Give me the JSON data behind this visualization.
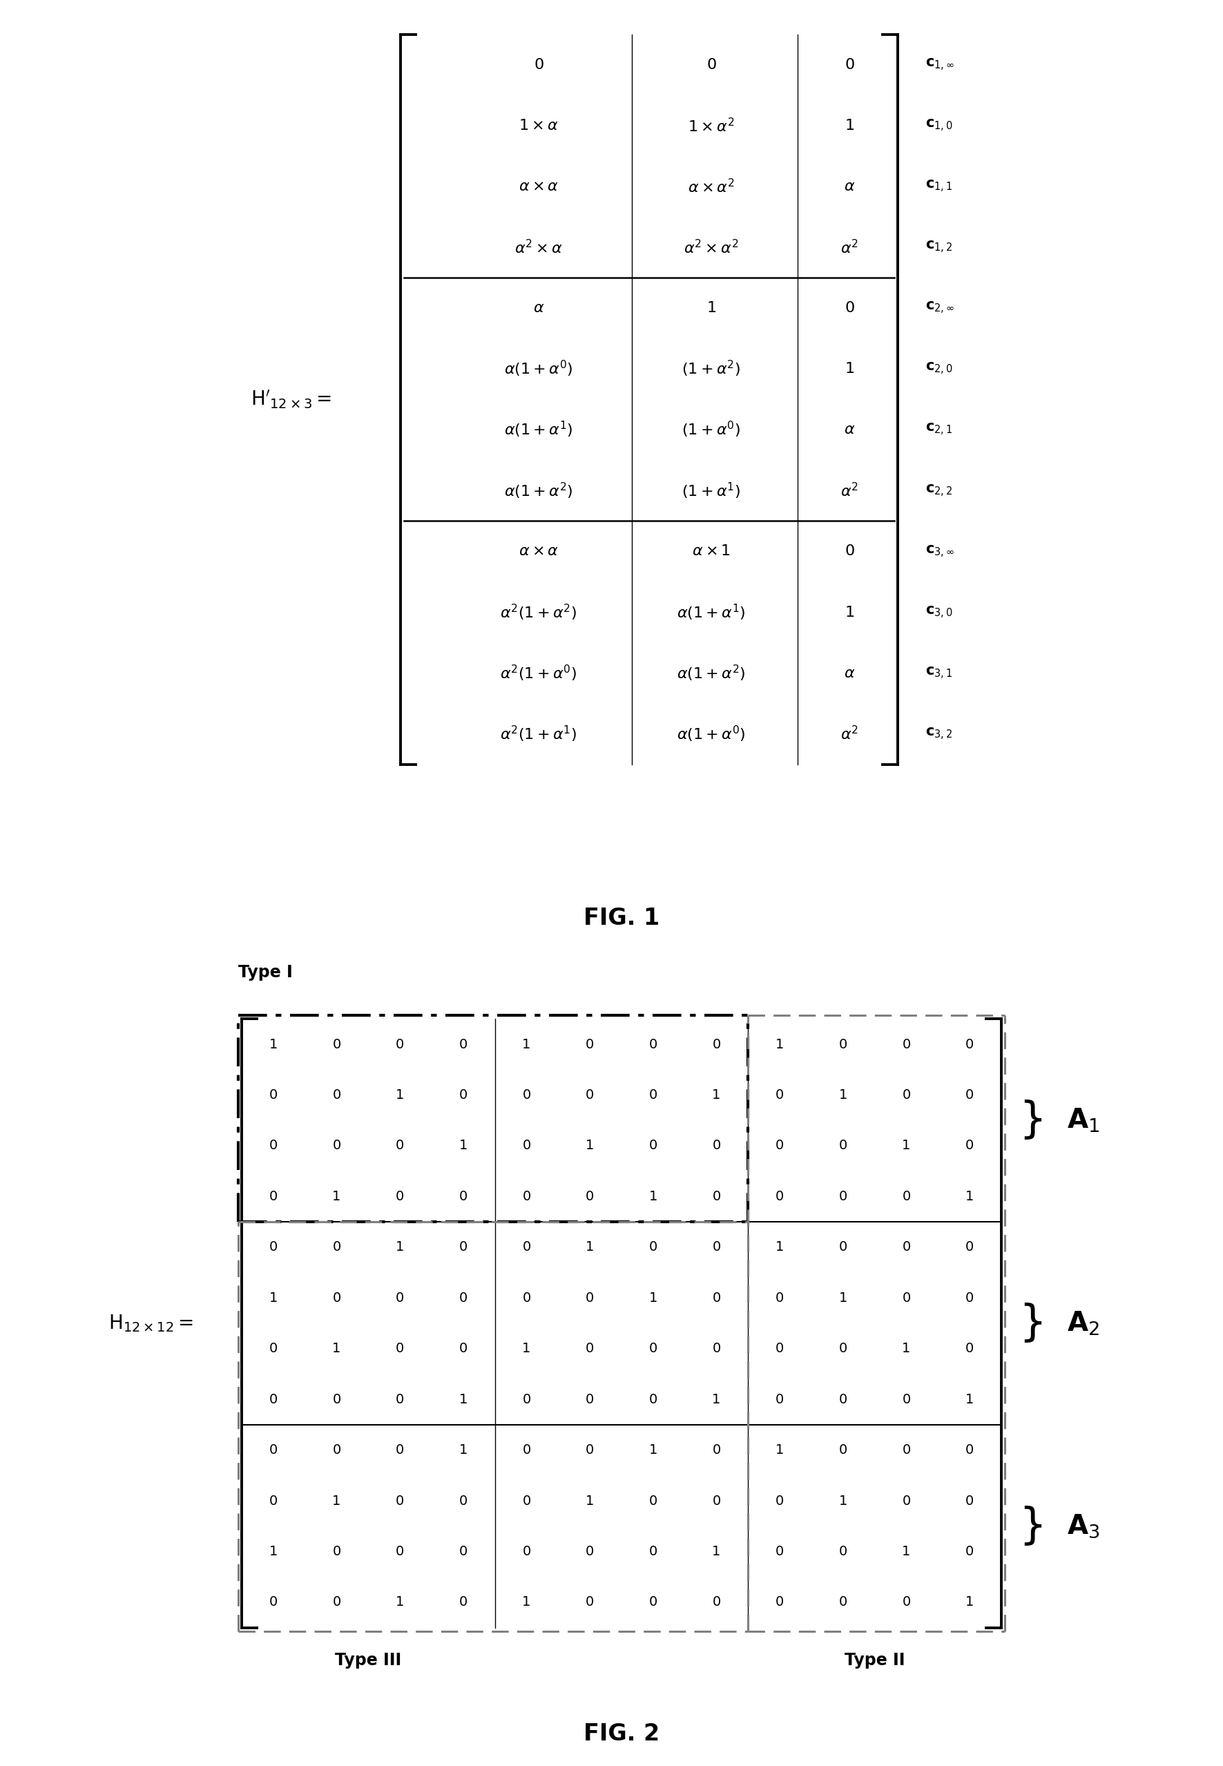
{
  "fig1_title": "FIG. 1",
  "fig2_title": "FIG. 2",
  "matrix2": [
    [
      1,
      0,
      0,
      0,
      1,
      0,
      0,
      0,
      1,
      0,
      0,
      0
    ],
    [
      0,
      0,
      1,
      0,
      0,
      0,
      0,
      1,
      0,
      1,
      0,
      0
    ],
    [
      0,
      0,
      0,
      1,
      0,
      1,
      0,
      0,
      0,
      0,
      1,
      0
    ],
    [
      0,
      1,
      0,
      0,
      0,
      0,
      1,
      0,
      0,
      0,
      0,
      1
    ],
    [
      0,
      0,
      1,
      0,
      0,
      1,
      0,
      0,
      1,
      0,
      0,
      0
    ],
    [
      1,
      0,
      0,
      0,
      0,
      0,
      1,
      0,
      0,
      1,
      0,
      0
    ],
    [
      0,
      1,
      0,
      0,
      1,
      0,
      0,
      0,
      0,
      0,
      1,
      0
    ],
    [
      0,
      0,
      0,
      1,
      0,
      0,
      0,
      1,
      0,
      0,
      0,
      1
    ],
    [
      0,
      0,
      0,
      1,
      0,
      0,
      1,
      0,
      1,
      0,
      0,
      0
    ],
    [
      0,
      1,
      0,
      0,
      0,
      1,
      0,
      0,
      0,
      1,
      0,
      0
    ],
    [
      1,
      0,
      0,
      0,
      0,
      0,
      0,
      1,
      0,
      0,
      1,
      0
    ],
    [
      0,
      0,
      1,
      0,
      1,
      0,
      0,
      0,
      0,
      0,
      0,
      1
    ]
  ],
  "background_color": "#ffffff"
}
